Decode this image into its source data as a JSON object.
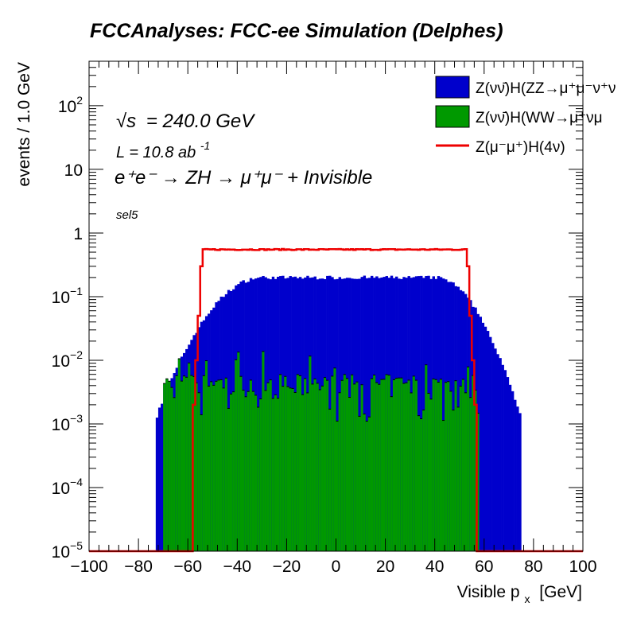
{
  "chart_data": {
    "type": "histogram",
    "title": "FCCAnalyses: FCC-ee Simulation (Delphes)",
    "xlabel": "Visible p",
    "xlabel_sub": "x",
    "xlabel_unit": "[GeV]",
    "ylabel": "events / 1.0 GeV",
    "xlim": [
      -100,
      100
    ],
    "ylim_log": [
      1e-05,
      500
    ],
    "yscale": "log",
    "x_ticks": [
      "−100",
      "−80",
      "−60",
      "−40",
      "−20",
      "0",
      "20",
      "40",
      "60",
      "80",
      "100"
    ],
    "y_ticks": [
      {
        "base": "10",
        "exp": "2",
        "value": 100
      },
      {
        "base": "10",
        "exp": "",
        "value": 10
      },
      {
        "base": "1",
        "exp": "",
        "value": 1
      },
      {
        "base": "10",
        "exp": "−1",
        "value": 0.1
      },
      {
        "base": "10",
        "exp": "−2",
        "value": 0.01
      },
      {
        "base": "10",
        "exp": "−3",
        "value": 0.001
      },
      {
        "base": "10",
        "exp": "−4",
        "value": 0.0001
      },
      {
        "base": "10",
        "exp": "−5",
        "value": 1e-05
      }
    ],
    "annotations": {
      "sqrt_s": "= 240.0 GeV",
      "sqrt_s_symbol": "√s",
      "lumi": "L = 10.8 ab",
      "lumi_exp": "-1",
      "process": "e⁺e⁻ → ZH → μ⁺μ⁻ + Invisible",
      "selection": "sel5"
    },
    "series": [
      {
        "name": "Z(νν̄)H(ZZ→μ⁺μ⁻ν⁺ν",
        "style": "filled",
        "color": "#0000cc",
        "shape": {
          "type": "stack_total",
          "plateau": 0.2,
          "rise_from": -73,
          "rise_to": -30,
          "fall_from": 40,
          "fall_to": 75
        }
      },
      {
        "name": "Z(νν̄)H(WW→μ⁺νμ",
        "style": "filled",
        "color": "#009900",
        "shape": {
          "type": "noisy",
          "plateau": 0.004,
          "range": [
            -70,
            58
          ]
        }
      },
      {
        "name": "Z(μ⁻μ⁺)H(4ν)",
        "style": "line",
        "color": "#ee0000",
        "shape": {
          "type": "line",
          "plateau": 0.55,
          "edges": [
            -58,
            57
          ]
        }
      }
    ],
    "legend_position": "top-right",
    "grid": false
  }
}
